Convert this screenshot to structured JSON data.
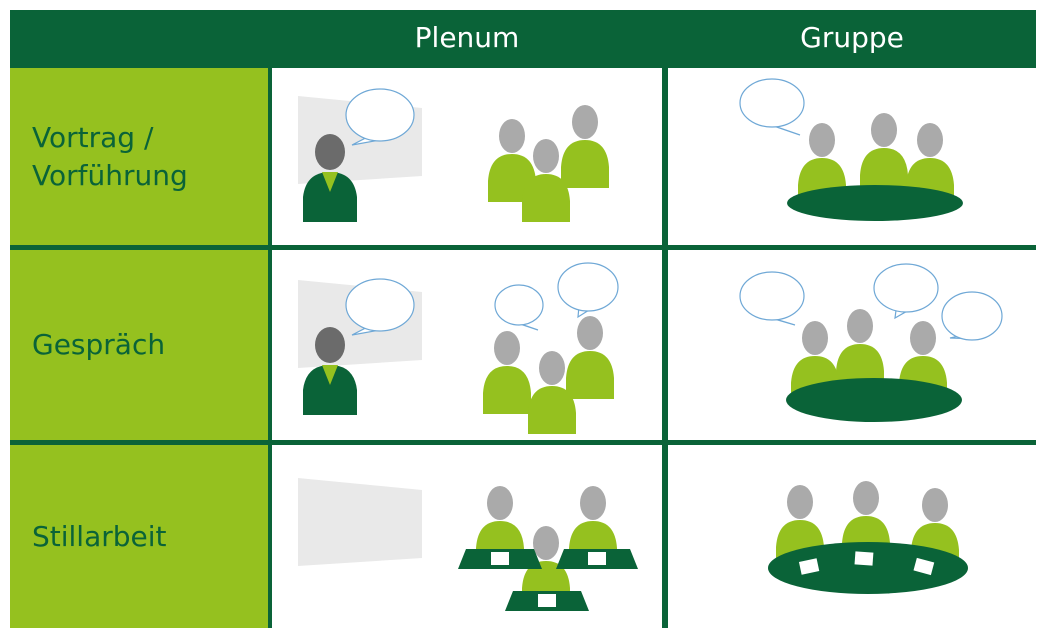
{
  "header": {
    "columns": [
      "Plenum",
      "Gruppe"
    ]
  },
  "rows": [
    {
      "label": "Vortrag / Vorführung"
    },
    {
      "label": "Gespräch"
    },
    {
      "label": "Stillarbeit"
    }
  ]
}
